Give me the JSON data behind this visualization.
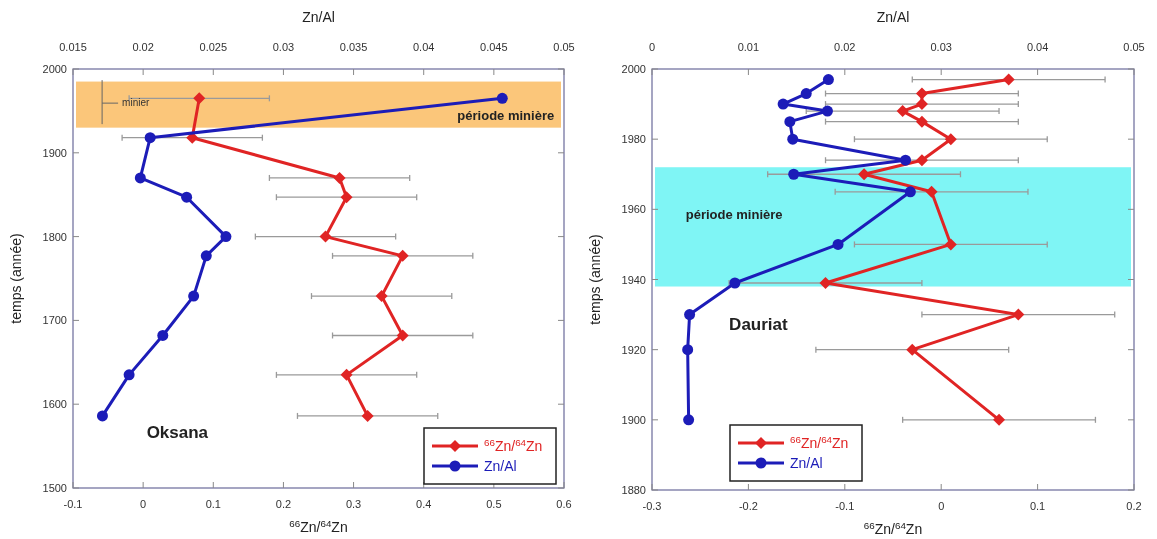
{
  "chart_data": [
    {
      "type": "line",
      "xlabel": "$^{66}$Zn/$^{64}$Zn",
      "x2label": "Zn/Al",
      "ylabel": "temps (année)",
      "xlim": [
        -0.1,
        0.6
      ],
      "xticks": [
        -0.1,
        0,
        0.1,
        0.2,
        0.3,
        0.4,
        0.5,
        0.6
      ],
      "x2lim": [
        0.015,
        0.05
      ],
      "x2ticks": [
        0.015,
        0.02,
        0.025,
        0.03,
        0.035,
        0.04,
        0.045,
        0.05
      ],
      "ylim": [
        1500,
        2000
      ],
      "yticks": [
        1500,
        1600,
        1700,
        1800,
        1900,
        2000
      ],
      "legend": "bottom right",
      "grid": false,
      "series": [
        {
          "name": "$^{66}$Zn/$^{64}$Zn",
          "color": "#e02424",
          "marker": "diamond",
          "x": [
            0.08,
            0.07,
            0.28,
            0.29,
            0.26,
            0.37,
            0.34,
            0.37,
            0.29,
            0.32
          ],
          "values": [
            1965,
            1918,
            1870,
            1847,
            1800,
            1777,
            1729,
            1682,
            1635,
            1586
          ],
          "xerrors": [
            0.1,
            0.1,
            0.1,
            0.1,
            0.1,
            0.1,
            0.1,
            0.1,
            0.1,
            0.1
          ]
        },
        {
          "name": "Zn/Al",
          "color": "#1c1cb8",
          "marker": "circle",
          "axis": "x2",
          "x": [
            0.0456,
            0.0205,
            0.0198,
            0.0231,
            0.0259,
            0.0245,
            0.0236,
            0.0214,
            0.019,
            0.0171
          ],
          "values": [
            1965,
            1918,
            1870,
            1847,
            1800,
            1777,
            1729,
            1682,
            1635,
            1586
          ]
        }
      ],
      "bands": [
        {
          "axis": "y",
          "from": 1930,
          "to": 1985,
          "label": "période minière",
          "color": "#fbc67a"
        }
      ],
      "annotations": [
        "minier",
        "Oksana"
      ]
    },
    {
      "type": "line",
      "xlabel": "$^{66}$Zn/$^{64}$Zn",
      "x2label": "Zn/Al",
      "ylabel": "temps (année)",
      "xlim": [
        -0.3,
        0.2
      ],
      "xticks": [
        -0.3,
        -0.2,
        -0.1,
        0,
        0.1,
        0.2
      ],
      "x2lim": [
        0,
        0.05
      ],
      "x2ticks": [
        0,
        0.01,
        0.02,
        0.03,
        0.04,
        0.05
      ],
      "ylim": [
        1880,
        2000
      ],
      "yticks": [
        1880,
        1900,
        1920,
        1940,
        1960,
        1980,
        2000
      ],
      "legend": "bottom left",
      "grid": false,
      "series": [
        {
          "name": "$^{66}$Zn/$^{64}$Zn",
          "color": "#e02424",
          "marker": "diamond",
          "x": [
            0.07,
            -0.02,
            -0.02,
            -0.04,
            -0.02,
            0.01,
            -0.02,
            -0.08,
            -0.01,
            0.01,
            -0.12,
            0.08,
            -0.03,
            0.06
          ],
          "values": [
            1997,
            1993,
            1990,
            1988,
            1985,
            1980,
            1974,
            1970,
            1965,
            1950,
            1939,
            1930,
            1920,
            1900
          ],
          "xerrors": [
            0.1,
            0.1,
            0.1,
            0.1,
            0.1,
            0.1,
            0.1,
            0.1,
            0.1,
            0.1,
            0.1,
            0.1,
            0.1,
            0.1
          ]
        },
        {
          "name": "Zn/Al",
          "color": "#1c1cb8",
          "marker": "circle",
          "axis": "x2",
          "x": [
            0.0183,
            0.016,
            0.0136,
            0.0182,
            0.0143,
            0.0146,
            0.0263,
            0.0147,
            0.0268,
            0.0193,
            0.0086,
            0.0039,
            0.0037,
            0.0038
          ],
          "values": [
            1997,
            1993,
            1990,
            1988,
            1985,
            1980,
            1974,
            1970,
            1965,
            1950,
            1939,
            1930,
            1920,
            1900
          ]
        }
      ],
      "bands": [
        {
          "axis": "y",
          "from": 1938,
          "to": 1972,
          "label": "période minière",
          "color": "#7ff5f5"
        }
      ],
      "annotations": [
        "Dauriat"
      ]
    }
  ]
}
